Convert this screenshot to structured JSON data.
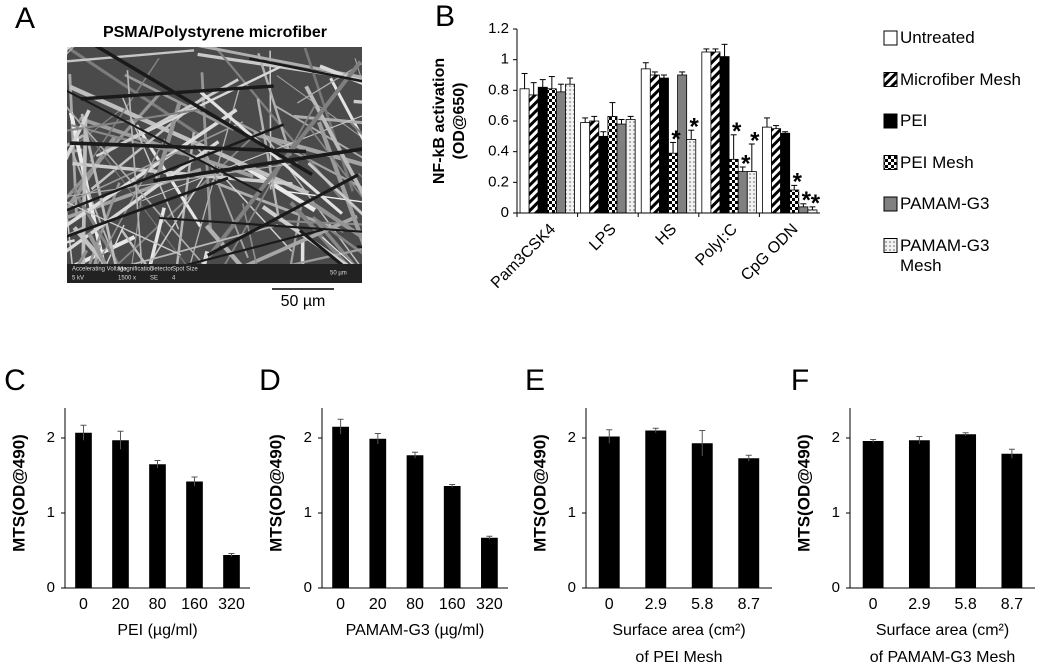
{
  "image_panel": {
    "label": "A",
    "title": "PSMA/Polystyrene microfiber",
    "info_bar": [
      "Accelerating Voltage",
      "Magnification",
      "Detector",
      "Spot Size",
      "5 kV",
      "1500 x",
      "SE",
      "4",
      "50 µm"
    ],
    "scale_bar": "50 µm"
  },
  "chart_data": [
    {
      "type": "grouped_bar",
      "panel_label": "B",
      "ylabel": [
        "NF-kB activation",
        "(OD@650)"
      ],
      "categories": [
        "Pam3CSK4",
        "LPS",
        "HS",
        "PolyI:C",
        "CpG ODN"
      ],
      "ylim": [
        0,
        1.2
      ],
      "yticks": [
        0,
        0.2,
        0.4,
        0.6,
        0.8,
        1,
        1.2
      ],
      "series": [
        {
          "name": "Untreated",
          "color": "#ffffff",
          "pattern": "solid",
          "values": [
            0.81,
            0.59,
            0.94,
            1.05,
            0.56
          ],
          "errors": [
            0.1,
            0.03,
            0.04,
            0.02,
            0.06
          ]
        },
        {
          "name": "Microfiber Mesh",
          "color": "#000000",
          "pattern": "hatch",
          "values": [
            0.77,
            0.6,
            0.9,
            1.05,
            0.55
          ],
          "errors": [
            0.08,
            0.03,
            0.02,
            0.02,
            0.02
          ]
        },
        {
          "name": "PEI",
          "color": "#000000",
          "pattern": "solid",
          "values": [
            0.82,
            0.5,
            0.88,
            1.02,
            0.52
          ],
          "errors": [
            0.05,
            0.03,
            0.02,
            0.08,
            0.01
          ]
        },
        {
          "name": "PEI Mesh",
          "color": "#000000",
          "pattern": "check",
          "values": [
            0.81,
            0.63,
            0.39,
            0.35,
            0.15
          ],
          "errors": [
            0.08,
            0.09,
            0.07,
            0.16,
            0.03
          ]
        },
        {
          "name": "PAMAM-G3",
          "color": "#808080",
          "pattern": "solid",
          "values": [
            0.79,
            0.58,
            0.9,
            0.27,
            0.04
          ],
          "errors": [
            0.05,
            0.03,
            0.02,
            0.03,
            0.02
          ]
        },
        {
          "name": "PAMAM-G3 Mesh",
          "color": "#666666",
          "pattern": "dots",
          "values": [
            0.84,
            0.61,
            0.48,
            0.27,
            0.02
          ],
          "errors": [
            0.04,
            0.02,
            0.06,
            0.18,
            0.02
          ]
        }
      ],
      "annotations": [
        {
          "text": "*",
          "category": 2,
          "series": 3
        },
        {
          "text": "*",
          "category": 2,
          "series": 5
        },
        {
          "text": "*",
          "category": 3,
          "series": 3
        },
        {
          "text": "*",
          "category": 3,
          "series": 4
        },
        {
          "text": "*",
          "category": 3,
          "series": 5
        },
        {
          "text": "*",
          "category": 4,
          "series": 3
        },
        {
          "text": "*",
          "category": 4,
          "series": 4
        },
        {
          "text": "*",
          "category": 4,
          "series": 5
        }
      ]
    },
    {
      "type": "bar",
      "panel_label": "C",
      "ylabel": "MTS(OD@490)",
      "xlabel": [
        "PEI (µg/ml)"
      ],
      "color": "#000000",
      "categories": [
        "0",
        "20",
        "80",
        "160",
        "320"
      ],
      "values": [
        2.07,
        1.97,
        1.65,
        1.42,
        0.44
      ],
      "errors": [
        0.1,
        0.12,
        0.05,
        0.06,
        0.02
      ],
      "ylim": [
        0,
        2.4
      ],
      "yticks": [
        0,
        1,
        2
      ]
    },
    {
      "type": "bar",
      "panel_label": "D",
      "ylabel": "MTS(OD@490)",
      "xlabel": [
        "PAMAM-G3 (µg/ml)"
      ],
      "color": "#000000",
      "categories": [
        "0",
        "20",
        "80",
        "160",
        "320"
      ],
      "values": [
        2.15,
        1.99,
        1.77,
        1.36,
        0.67
      ],
      "errors": [
        0.1,
        0.07,
        0.04,
        0.02,
        0.02
      ],
      "ylim": [
        0,
        2.4
      ],
      "yticks": [
        0,
        1,
        2
      ]
    },
    {
      "type": "bar",
      "panel_label": "E",
      "ylabel": "MTS(OD@490)",
      "xlabel": [
        "Surface area (cm²)",
        "of PEI Mesh"
      ],
      "color": "#000000",
      "categories": [
        "0",
        "2.9",
        "5.8",
        "8.7"
      ],
      "values": [
        2.02,
        2.1,
        1.93,
        1.73
      ],
      "errors": [
        0.09,
        0.03,
        0.17,
        0.04
      ],
      "ylim": [
        0,
        2.4
      ],
      "yticks": [
        0,
        1,
        2
      ]
    },
    {
      "type": "bar",
      "panel_label": "F",
      "ylabel": "MTS(OD@490)",
      "xlabel": [
        "Surface area (cm²)",
        "of PAMAM-G3 Mesh"
      ],
      "color": "#000000",
      "categories": [
        "0",
        "2.9",
        "5.8",
        "8.7"
      ],
      "values": [
        1.96,
        1.97,
        2.05,
        1.79
      ],
      "errors": [
        0.02,
        0.05,
        0.02,
        0.06
      ],
      "ylim": [
        0,
        2.4
      ],
      "yticks": [
        0,
        1,
        2
      ]
    }
  ]
}
